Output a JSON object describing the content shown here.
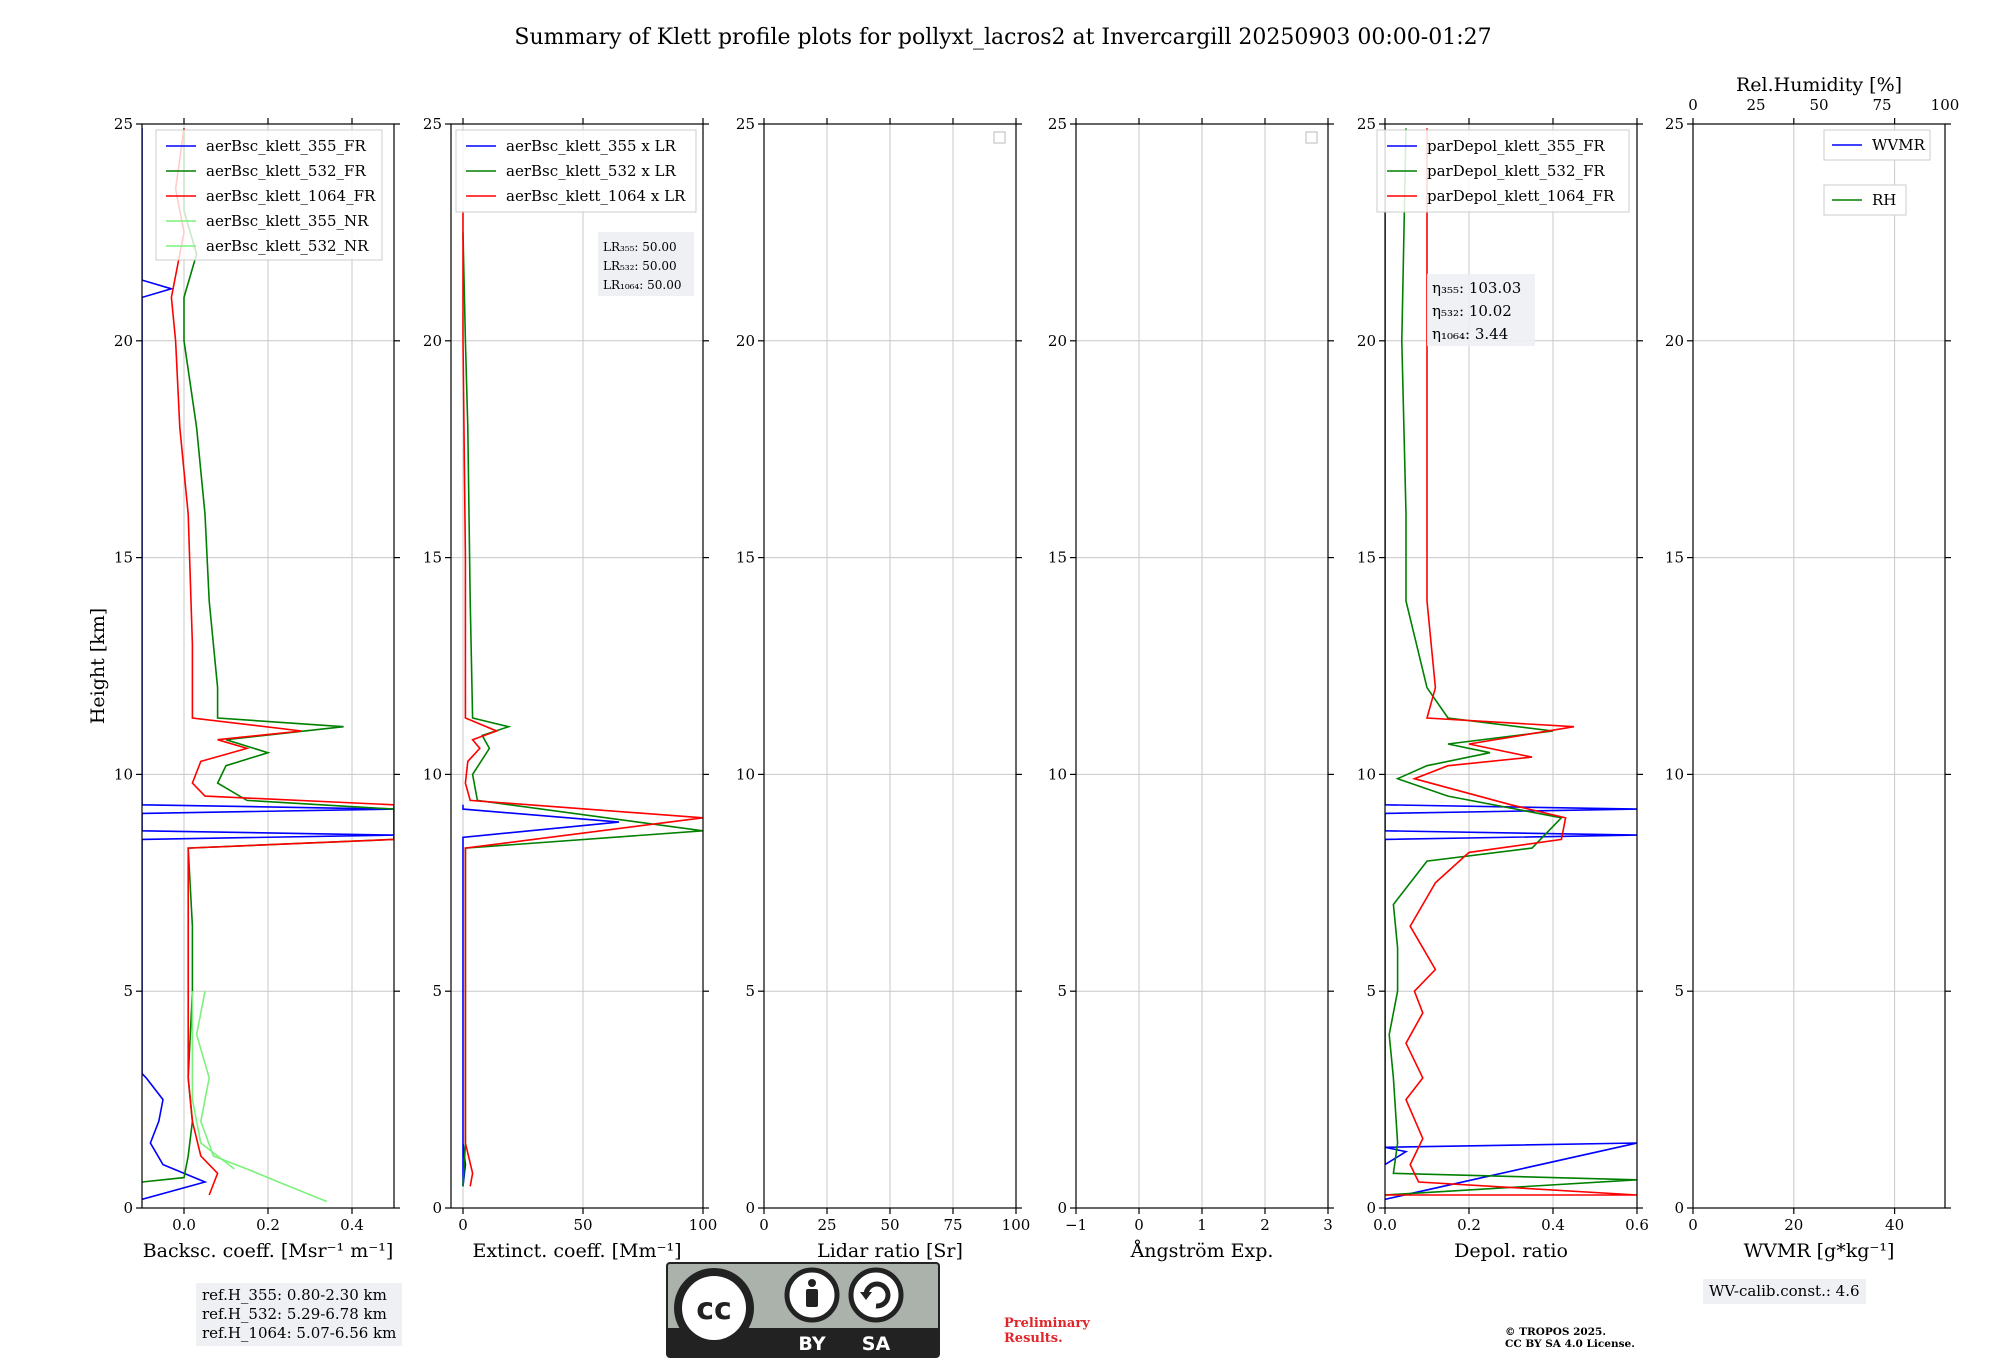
{
  "chart_data": {
    "type": "line",
    "title": "Summary of Klett profile plots for pollyxt_lacros2 at Invercargill 20250903 00:00-01:27",
    "ylabel": "Height [km]",
    "ylim": [
      0,
      25
    ],
    "y_ticks": [
      "0",
      "5",
      "10",
      "15",
      "20",
      "25"
    ],
    "colors": {
      "ch355": "#0000ff",
      "ch532": "#008000",
      "ch1064": "#ff0000",
      "nr": "#7cf27c",
      "grid": "#c8c8c8"
    },
    "panels": [
      {
        "id": "backscatter",
        "xlabel": "Backsc. coeff. [Msr⁻¹ m⁻¹]",
        "xlim": [
          -0.1,
          0.5
        ],
        "x_ticks": [
          {
            "v": 0.0,
            "t": "0.0"
          },
          {
            "v": 0.2,
            "t": "0.2"
          },
          {
            "v": 0.4,
            "t": "0.4"
          }
        ],
        "legend": [
          "aerBsc_klett_355_FR",
          "aerBsc_klett_532_FR",
          "aerBsc_klett_1064_FR",
          "aerBsc_klett_355_NR",
          "aerBsc_klett_532_NR"
        ],
        "series": [
          {
            "name": "aerBsc_klett_355_FR",
            "color": "#0000ff",
            "points": [
              [
                -0.1,
                0.2
              ],
              [
                0.05,
                0.6
              ],
              [
                -0.05,
                1.0
              ],
              [
                -0.08,
                1.5
              ],
              [
                -0.06,
                2.0
              ],
              [
                -0.05,
                2.5
              ],
              [
                -0.09,
                3.0
              ],
              [
                -0.1,
                3.1
              ],
              [
                -0.1,
                8.5
              ],
              [
                0.5,
                8.6
              ],
              [
                -0.1,
                8.7
              ],
              [
                -0.1,
                9.1
              ],
              [
                0.5,
                9.2
              ],
              [
                -0.1,
                9.3
              ],
              [
                -0.1,
                21.0
              ],
              [
                -0.03,
                21.2
              ],
              [
                -0.1,
                21.4
              ],
              [
                -0.1,
                24.9
              ]
            ]
          },
          {
            "name": "aerBsc_klett_532_FR",
            "color": "#008000",
            "points": [
              [
                -0.1,
                0.6
              ],
              [
                0.0,
                0.7
              ],
              [
                0.01,
                1.2
              ],
              [
                0.02,
                2.0
              ],
              [
                0.01,
                3.0
              ],
              [
                0.02,
                5.0
              ],
              [
                0.02,
                6.5
              ],
              [
                0.01,
                8.3
              ],
              [
                0.5,
                8.5
              ],
              [
                0.5,
                9.2
              ],
              [
                0.15,
                9.4
              ],
              [
                0.08,
                9.8
              ],
              [
                0.1,
                10.2
              ],
              [
                0.2,
                10.5
              ],
              [
                0.1,
                10.8
              ],
              [
                0.38,
                11.1
              ],
              [
                0.08,
                11.3
              ],
              [
                0.08,
                12.0
              ],
              [
                0.06,
                14.0
              ],
              [
                0.05,
                16.0
              ],
              [
                0.03,
                18.0
              ],
              [
                0.0,
                20.0
              ],
              [
                0.0,
                21.0
              ],
              [
                0.03,
                22.0
              ],
              [
                0.0,
                23.0
              ],
              [
                0.0,
                24.9
              ]
            ]
          },
          {
            "name": "aerBsc_klett_1064_FR",
            "color": "#ff0000",
            "points": [
              [
                0.06,
                0.3
              ],
              [
                0.08,
                0.8
              ],
              [
                0.04,
                1.2
              ],
              [
                0.02,
                2.0
              ],
              [
                0.01,
                3.0
              ],
              [
                0.01,
                5.0
              ],
              [
                0.01,
                6.5
              ],
              [
                0.01,
                8.3
              ],
              [
                0.5,
                8.5
              ],
              [
                0.5,
                9.3
              ],
              [
                0.05,
                9.5
              ],
              [
                0.02,
                9.8
              ],
              [
                0.04,
                10.3
              ],
              [
                0.15,
                10.6
              ],
              [
                0.08,
                10.8
              ],
              [
                0.28,
                11.0
              ],
              [
                0.02,
                11.3
              ],
              [
                0.02,
                13.0
              ],
              [
                0.01,
                16.0
              ],
              [
                -0.01,
                18.0
              ],
              [
                -0.02,
                20.0
              ],
              [
                -0.03,
                21.0
              ],
              [
                0.0,
                22.5
              ],
              [
                -0.02,
                23.5
              ],
              [
                0.0,
                24.9
              ]
            ]
          },
          {
            "name": "aerBsc_klett_355_NR",
            "color": "#7cf27c",
            "points": [
              [
                0.34,
                0.15
              ],
              [
                0.25,
                0.5
              ],
              [
                0.15,
                0.9
              ],
              [
                0.07,
                1.2
              ],
              [
                0.04,
                2.0
              ],
              [
                0.06,
                3.0
              ],
              [
                0.03,
                4.0
              ],
              [
                0.05,
                5.0
              ]
            ]
          },
          {
            "name": "aerBsc_klett_532_NR",
            "color": "#7cf27c",
            "points": [
              [
                0.12,
                0.9
              ],
              [
                0.04,
                1.5
              ],
              [
                0.02,
                2.5
              ],
              [
                0.02,
                4.0
              ],
              [
                0.02,
                5.0
              ]
            ]
          }
        ]
      },
      {
        "id": "extinction",
        "xlabel": "Extinct. coeff. [Mm⁻¹]",
        "xlim": [
          -5,
          100
        ],
        "x_ticks": [
          {
            "v": 0,
            "t": "0"
          },
          {
            "v": 50,
            "t": "50"
          },
          {
            "v": 100,
            "t": "100"
          }
        ],
        "legend": [
          "aerBsc_klett_355 x LR",
          "aerBsc_klett_532 x LR",
          "aerBsc_klett_1064 x LR"
        ],
        "series": [
          {
            "name": "aerBsc_klett_355 x LR",
            "color": "#0000ff",
            "points": [
              [
                0,
                1.5
              ],
              [
                1,
                1.0
              ],
              [
                0,
                0.5
              ],
              [
                0,
                8.4
              ],
              [
                0,
                8.55
              ],
              [
                65,
                8.9
              ],
              [
                0,
                9.2
              ],
              [
                0,
                9.3
              ]
            ]
          },
          {
            "name": "aerBsc_klett_532 x LR",
            "color": "#008000",
            "points": [
              [
                0,
                0.5
              ],
              [
                1,
                1.5
              ],
              [
                1,
                5.0
              ],
              [
                1,
                8.3
              ],
              [
                100,
                8.7
              ],
              [
                6,
                9.4
              ],
              [
                4,
                10.0
              ],
              [
                11,
                10.6
              ],
              [
                8,
                10.9
              ],
              [
                19,
                11.1
              ],
              [
                4,
                11.3
              ],
              [
                3,
                14.0
              ],
              [
                2,
                18.0
              ],
              [
                1,
                20.0
              ],
              [
                0,
                22.5
              ]
            ]
          },
          {
            "name": "aerBsc_klett_1064 x LR",
            "color": "#ff0000",
            "points": [
              [
                3,
                0.5
              ],
              [
                4,
                0.8
              ],
              [
                1,
                1.5
              ],
              [
                1,
                5.0
              ],
              [
                1,
                8.3
              ],
              [
                100,
                9.0
              ],
              [
                3,
                9.4
              ],
              [
                1,
                9.8
              ],
              [
                2,
                10.3
              ],
              [
                7,
                10.6
              ],
              [
                4,
                10.8
              ],
              [
                14,
                11.0
              ],
              [
                1,
                11.3
              ],
              [
                1,
                15.0
              ],
              [
                0,
                20.0
              ],
              [
                0,
                23.0
              ]
            ]
          }
        ]
      },
      {
        "id": "lidar-ratio",
        "xlabel": "Lidar ratio [Sr]",
        "xlim": [
          0,
          100
        ],
        "x_ticks": [
          {
            "v": 0,
            "t": "0"
          },
          {
            "v": 25,
            "t": "25"
          },
          {
            "v": 50,
            "t": "50"
          },
          {
            "v": 75,
            "t": "75"
          },
          {
            "v": 100,
            "t": "100"
          }
        ],
        "legend": [],
        "series": []
      },
      {
        "id": "angstrom",
        "xlabel": "Ångström Exp.",
        "xlim": [
          -1,
          3
        ],
        "x_ticks": [
          {
            "v": -1,
            "t": "−1"
          },
          {
            "v": 0,
            "t": "0"
          },
          {
            "v": 1,
            "t": "1"
          },
          {
            "v": 2,
            "t": "2"
          },
          {
            "v": 3,
            "t": "3"
          }
        ],
        "legend": [],
        "series": []
      },
      {
        "id": "depol",
        "xlabel": "Depol. ratio",
        "xlim": [
          0,
          0.6
        ],
        "x_ticks": [
          {
            "v": 0.0,
            "t": "0.0"
          },
          {
            "v": 0.2,
            "t": "0.2"
          },
          {
            "v": 0.4,
            "t": "0.4"
          },
          {
            "v": 0.6,
            "t": "0.6"
          }
        ],
        "legend": [
          "parDepol_klett_355_FR",
          "parDepol_klett_532_FR",
          "parDepol_klett_1064_FR"
        ],
        "series": [
          {
            "name": "parDepol_klett_355_FR",
            "color": "#0000ff",
            "points": [
              [
                0,
                0.2
              ],
              [
                0.6,
                1.5
              ],
              [
                0,
                1.4
              ],
              [
                0.05,
                1.3
              ],
              [
                0,
                1.0
              ],
              [
                0,
                8.5
              ],
              [
                0.6,
                8.6
              ],
              [
                0,
                8.7
              ],
              [
                0,
                9.1
              ],
              [
                0.6,
                9.2
              ],
              [
                0,
                9.3
              ],
              [
                0,
                24.9
              ]
            ]
          },
          {
            "name": "parDepol_klett_532_FR",
            "color": "#008000",
            "points": [
              [
                0.0,
                0.3
              ],
              [
                0.6,
                0.65
              ],
              [
                0.02,
                0.8
              ],
              [
                0.03,
                1.5
              ],
              [
                0.02,
                3.0
              ],
              [
                0.01,
                4.0
              ],
              [
                0.03,
                5.0
              ],
              [
                0.03,
                6.0
              ],
              [
                0.02,
                7.0
              ],
              [
                0.1,
                8.0
              ],
              [
                0.35,
                8.3
              ],
              [
                0.4,
                8.8
              ],
              [
                0.42,
                9.0
              ],
              [
                0.15,
                9.5
              ],
              [
                0.03,
                9.9
              ],
              [
                0.1,
                10.2
              ],
              [
                0.25,
                10.5
              ],
              [
                0.15,
                10.7
              ],
              [
                0.4,
                11.0
              ],
              [
                0.15,
                11.3
              ],
              [
                0.1,
                12.0
              ],
              [
                0.05,
                14.0
              ],
              [
                0.05,
                16.0
              ],
              [
                0.04,
                20.0
              ],
              [
                0.05,
                24.9
              ]
            ]
          },
          {
            "name": "parDepol_klett_1064_FR",
            "color": "#ff0000",
            "points": [
              [
                0.0,
                0.3
              ],
              [
                0.6,
                0.3
              ],
              [
                0.08,
                0.6
              ],
              [
                0.06,
                1.0
              ],
              [
                0.09,
                1.6
              ],
              [
                0.05,
                2.5
              ],
              [
                0.09,
                3.0
              ],
              [
                0.05,
                3.8
              ],
              [
                0.09,
                4.5
              ],
              [
                0.07,
                5.0
              ],
              [
                0.12,
                5.5
              ],
              [
                0.06,
                6.5
              ],
              [
                0.12,
                7.5
              ],
              [
                0.2,
                8.2
              ],
              [
                0.42,
                8.5
              ],
              [
                0.43,
                9.0
              ],
              [
                0.3,
                9.3
              ],
              [
                0.07,
                9.9
              ],
              [
                0.15,
                10.2
              ],
              [
                0.35,
                10.4
              ],
              [
                0.2,
                10.7
              ],
              [
                0.45,
                11.1
              ],
              [
                0.1,
                11.3
              ],
              [
                0.12,
                12.0
              ],
              [
                0.1,
                14.0
              ],
              [
                0.1,
                16.0
              ],
              [
                0.1,
                20.0
              ],
              [
                0.1,
                24.9
              ]
            ]
          }
        ]
      },
      {
        "id": "wvmr",
        "xlabel": "WVMR [g*kg⁻¹]",
        "xlim": [
          0,
          50
        ],
        "x_ticks": [
          {
            "v": 0,
            "t": "0"
          },
          {
            "v": 20,
            "t": "20"
          },
          {
            "v": 40,
            "t": "40"
          }
        ],
        "top_xlabel": "Rel.Humidity [%]",
        "top_ticks": [
          "0",
          "25",
          "50",
          "75",
          "100"
        ],
        "legend": [
          "WVMR",
          "RH"
        ],
        "series": []
      }
    ]
  },
  "annotations": {
    "lidar_ratio_lines": [
      "LR₃₅₅: 50.00",
      "LR₅₃₂: 50.00",
      "LR₁₀₆₄: 50.00"
    ],
    "eta_lines": [
      "η₃₅₅: 103.03",
      "η₅₃₂: 10.02",
      "η₁₀₆₄: 3.44"
    ],
    "ref_heights": [
      "ref.H_355: 0.80-2.30 km",
      "ref.H_532: 5.29-6.78 km",
      "ref.H_1064: 5.07-6.56 km"
    ],
    "wv_calib": "WV-calib.const.: 4.6",
    "preliminary": [
      "Preliminary",
      "Results."
    ],
    "copyright": [
      "© TROPOS 2025.",
      "CC BY SA 4.0 License."
    ],
    "license_badge": {
      "left": "BY",
      "right": "SA"
    }
  }
}
